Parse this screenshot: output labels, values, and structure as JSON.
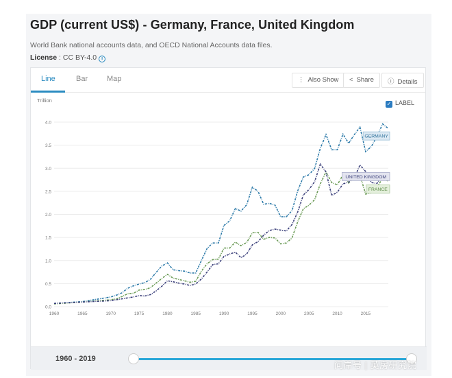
{
  "page": {
    "title": "GDP (current US$) - Germany, France, United Kingdom",
    "subtitle": "World Bank national accounts data, and OECD National Accounts data files.",
    "license_label": "License",
    "license_value": " : CC BY-4.0"
  },
  "tabs": [
    {
      "label": "Line",
      "active": true
    },
    {
      "label": "Bar",
      "active": false
    },
    {
      "label": "Map",
      "active": false
    }
  ],
  "toolbar": {
    "also_show": "Also Show",
    "share": "Share",
    "details": "Details"
  },
  "label_toggle": {
    "label": "LABEL",
    "checked": true
  },
  "range": {
    "start": "1960",
    "sep": " - ",
    "end": "2019"
  },
  "watermark": "问岸号 | 英房研究院",
  "colors": {
    "germany": "#2b79a8",
    "france": "#6a9a55",
    "uk": "#3a3f7a",
    "accent": "#2a8bc0"
  },
  "chart_data": {
    "type": "line",
    "ylabel": "Trillion",
    "ylim": [
      0,
      4.0
    ],
    "xlim": [
      1960,
      2019
    ],
    "yticks": [
      "0.0",
      "0.5",
      "1.0",
      "1.5",
      "2.0",
      "2.5",
      "3.0",
      "3.5",
      "4.0"
    ],
    "xticks": [
      "1960",
      "1965",
      "1970",
      "1975",
      "1980",
      "1985",
      "1990",
      "1995",
      "2000",
      "2005",
      "2010",
      "2015"
    ],
    "grid": true,
    "series": [
      {
        "name": "GERMANY",
        "color": "#2b79a8",
        "x": [
          1960,
          1965,
          1970,
          1971,
          1972,
          1973,
          1974,
          1975,
          1976,
          1977,
          1978,
          1979,
          1980,
          1981,
          1982,
          1983,
          1984,
          1985,
          1986,
          1987,
          1988,
          1989,
          1990,
          1991,
          1992,
          1993,
          1994,
          1995,
          1996,
          1997,
          1998,
          1999,
          2000,
          2001,
          2002,
          2003,
          2004,
          2005,
          2006,
          2007,
          2008,
          2009,
          2010,
          2011,
          2012,
          2013,
          2014,
          2015,
          2016,
          2017,
          2018,
          2019
        ],
        "y": [
          0.07,
          0.11,
          0.21,
          0.25,
          0.3,
          0.4,
          0.45,
          0.49,
          0.52,
          0.59,
          0.74,
          0.88,
          0.95,
          0.8,
          0.78,
          0.77,
          0.73,
          0.73,
          1.0,
          1.26,
          1.38,
          1.38,
          1.76,
          1.86,
          2.13,
          2.07,
          2.21,
          2.59,
          2.5,
          2.22,
          2.24,
          2.2,
          1.95,
          1.95,
          2.08,
          2.51,
          2.81,
          2.86,
          3.0,
          3.43,
          3.73,
          3.4,
          3.4,
          3.74,
          3.54,
          3.73,
          3.89,
          3.36,
          3.47,
          3.69,
          3.96,
          3.86
        ]
      },
      {
        "name": "FRANCE",
        "color": "#6a9a55",
        "x": [
          1960,
          1965,
          1970,
          1971,
          1972,
          1973,
          1974,
          1975,
          1976,
          1977,
          1978,
          1979,
          1980,
          1981,
          1982,
          1983,
          1984,
          1985,
          1986,
          1987,
          1988,
          1989,
          1990,
          1991,
          1992,
          1993,
          1994,
          1995,
          1996,
          1997,
          1998,
          1999,
          2000,
          2001,
          2002,
          2003,
          2004,
          2005,
          2006,
          2007,
          2008,
          2009,
          2010,
          2011,
          2012,
          2013,
          2014,
          2015,
          2016,
          2017,
          2018,
          2019
        ],
        "y": [
          0.06,
          0.1,
          0.15,
          0.17,
          0.22,
          0.28,
          0.29,
          0.36,
          0.37,
          0.41,
          0.51,
          0.61,
          0.7,
          0.62,
          0.59,
          0.56,
          0.53,
          0.55,
          0.77,
          0.93,
          1.02,
          1.03,
          1.27,
          1.27,
          1.4,
          1.32,
          1.39,
          1.6,
          1.61,
          1.46,
          1.5,
          1.49,
          1.36,
          1.38,
          1.49,
          1.84,
          2.12,
          2.2,
          2.32,
          2.66,
          2.92,
          2.69,
          2.64,
          2.86,
          2.68,
          2.81,
          2.85,
          2.44,
          2.47,
          2.59,
          2.78,
          2.72
        ]
      },
      {
        "name": "UNITED KINGDOM",
        "color": "#3a3f7a",
        "x": [
          1960,
          1965,
          1970,
          1971,
          1972,
          1973,
          1974,
          1975,
          1976,
          1977,
          1978,
          1979,
          1980,
          1981,
          1982,
          1983,
          1984,
          1985,
          1986,
          1987,
          1988,
          1989,
          1990,
          1991,
          1992,
          1993,
          1994,
          1995,
          1996,
          1997,
          1998,
          1999,
          2000,
          2001,
          2002,
          2003,
          2004,
          2005,
          2006,
          2007,
          2008,
          2009,
          2010,
          2011,
          2012,
          2013,
          2014,
          2015,
          2016,
          2017,
          2018,
          2019
        ],
        "y": [
          0.07,
          0.1,
          0.13,
          0.15,
          0.17,
          0.19,
          0.21,
          0.24,
          0.23,
          0.26,
          0.34,
          0.44,
          0.56,
          0.54,
          0.51,
          0.49,
          0.46,
          0.49,
          0.6,
          0.75,
          0.91,
          0.93,
          1.09,
          1.14,
          1.18,
          1.06,
          1.14,
          1.34,
          1.41,
          1.55,
          1.65,
          1.68,
          1.66,
          1.64,
          1.78,
          2.05,
          2.42,
          2.54,
          2.71,
          3.09,
          2.92,
          2.41,
          2.48,
          2.66,
          2.7,
          2.79,
          3.07,
          2.93,
          2.69,
          2.67,
          2.86,
          2.83
        ]
      }
    ]
  }
}
